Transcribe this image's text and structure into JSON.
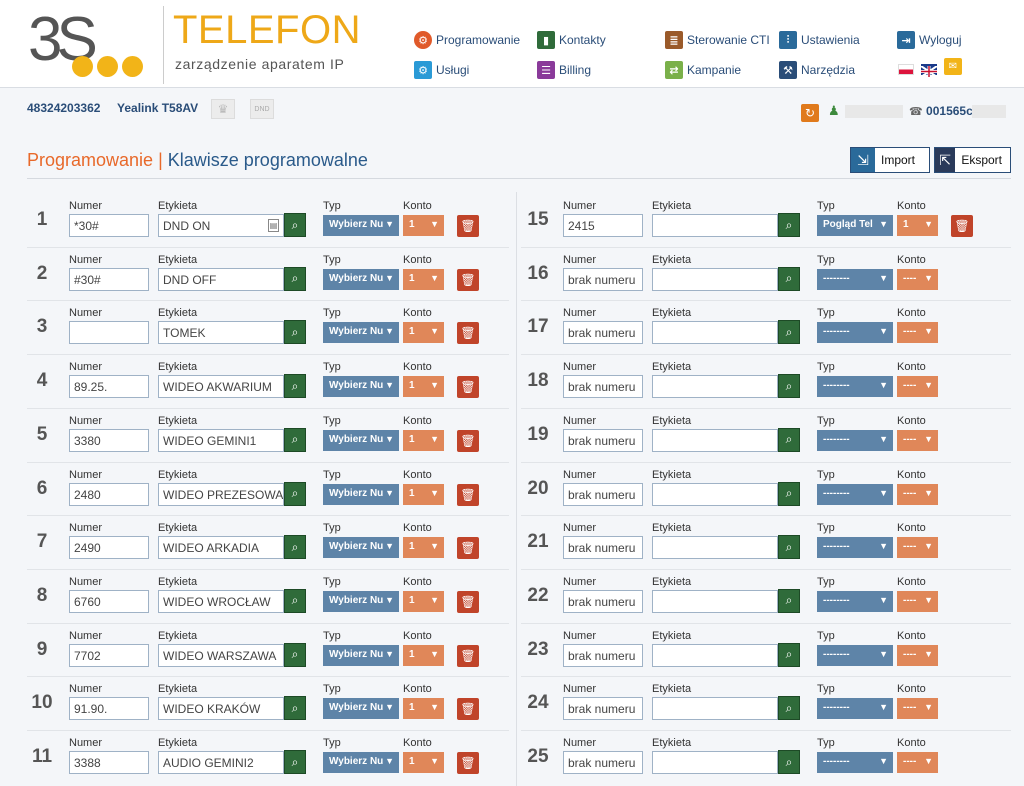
{
  "brand": {
    "logo_text": "3S",
    "title": "TELEFON",
    "subtitle": "zarządzenie aparatem IP"
  },
  "nav": [
    {
      "label": "Programowanie",
      "icon": "gear-icon",
      "color": "#e05a2a"
    },
    {
      "label": "Kontakty",
      "icon": "book-icon",
      "color": "#2f6b3a"
    },
    {
      "label": "Sterowanie CTI",
      "icon": "cti-icon",
      "color": "#9a5a2a"
    },
    {
      "label": "Ustawienia",
      "icon": "sliders-icon",
      "color": "#2a6a9a"
    },
    {
      "label": "Wyloguj",
      "icon": "logout-icon",
      "color": "#2a6a9a"
    },
    {
      "label": "Usługi",
      "icon": "services-icon",
      "color": "#2a9ad6"
    },
    {
      "label": "Billing",
      "icon": "billing-icon",
      "color": "#8a3a9a"
    },
    {
      "label": "Kampanie",
      "icon": "campaign-icon",
      "color": "#7ab04a"
    },
    {
      "label": "Narzędzia",
      "icon": "tools-icon",
      "color": "#2a4d78"
    }
  ],
  "subbar": {
    "number": "48324203362",
    "model": "Yealink T58AV",
    "dnd": "DND",
    "phone_id": "001565c"
  },
  "page": {
    "section": "Programowanie",
    "separator": "|",
    "title": "Klawisze programowalne",
    "import_label": "Import",
    "export_label": "Eksport"
  },
  "labels": {
    "numer": "Numer",
    "etykieta": "Etykieta",
    "typ": "Typ",
    "konto": "Konto"
  },
  "left_rows": [
    {
      "n": "1",
      "numer": "*30#",
      "etykieta": "DND ON",
      "typ": "Wybierz Nu",
      "konto": "1",
      "has_contact_icon": true
    },
    {
      "n": "2",
      "numer": "#30#",
      "etykieta": "DND OFF",
      "typ": "Wybierz Nu",
      "konto": "1"
    },
    {
      "n": "3",
      "numer": "",
      "etykieta": "TOMEK",
      "typ": "Wybierz Nu",
      "konto": "1"
    },
    {
      "n": "4",
      "numer": "89.25.",
      "etykieta": "WIDEO AKWARIUM",
      "typ": "Wybierz Nu",
      "konto": "1"
    },
    {
      "n": "5",
      "numer": "3380",
      "etykieta": "WIDEO GEMINI1",
      "typ": "Wybierz Nu",
      "konto": "1"
    },
    {
      "n": "6",
      "numer": "2480",
      "etykieta": "WIDEO PREZESOWA",
      "typ": "Wybierz Nu",
      "konto": "1"
    },
    {
      "n": "7",
      "numer": "2490",
      "etykieta": "WIDEO ARKADIA",
      "typ": "Wybierz Nu",
      "konto": "1"
    },
    {
      "n": "8",
      "numer": "6760",
      "etykieta": "WIDEO WROCŁAW",
      "typ": "Wybierz Nu",
      "konto": "1"
    },
    {
      "n": "9",
      "numer": "7702",
      "etykieta": "WIDEO WARSZAWA",
      "typ": "Wybierz Nu",
      "konto": "1"
    },
    {
      "n": "10",
      "numer": "91.90.",
      "etykieta": "WIDEO KRAKÓW",
      "typ": "Wybierz Nu",
      "konto": "1"
    },
    {
      "n": "11",
      "numer": "3388",
      "etykieta": "AUDIO GEMINI2",
      "typ": "Wybierz Nu",
      "konto": "1"
    }
  ],
  "right_rows": [
    {
      "n": "15",
      "numer": "2415",
      "etykieta": "",
      "typ": "Pogląd Tel",
      "konto": "1",
      "has_delete": true
    },
    {
      "n": "16",
      "numer": "brak numeru",
      "etykieta": "",
      "typ": "--------",
      "konto": "----"
    },
    {
      "n": "17",
      "numer": "brak numeru",
      "etykieta": "",
      "typ": "--------",
      "konto": "----"
    },
    {
      "n": "18",
      "numer": "brak numeru",
      "etykieta": "",
      "typ": "--------",
      "konto": "----"
    },
    {
      "n": "19",
      "numer": "brak numeru",
      "etykieta": "",
      "typ": "--------",
      "konto": "----"
    },
    {
      "n": "20",
      "numer": "brak numeru",
      "etykieta": "",
      "typ": "--------",
      "konto": "----"
    },
    {
      "n": "21",
      "numer": "brak numeru",
      "etykieta": "",
      "typ": "--------",
      "konto": "----"
    },
    {
      "n": "22",
      "numer": "brak numeru",
      "etykieta": "",
      "typ": "--------",
      "konto": "----"
    },
    {
      "n": "23",
      "numer": "brak numeru",
      "etykieta": "",
      "typ": "--------",
      "konto": "----"
    },
    {
      "n": "24",
      "numer": "brak numeru",
      "etykieta": "",
      "typ": "--------",
      "konto": "----"
    },
    {
      "n": "25",
      "numer": "brak numeru",
      "etykieta": "",
      "typ": "--------",
      "konto": "----"
    }
  ],
  "colors": {
    "accent_orange": "#e8692a",
    "accent_blue": "#2a5a8a",
    "typ_select": "#5e84a8",
    "konto_select": "#e08759",
    "search": "#2f6b3a",
    "delete": "#c0442a"
  }
}
